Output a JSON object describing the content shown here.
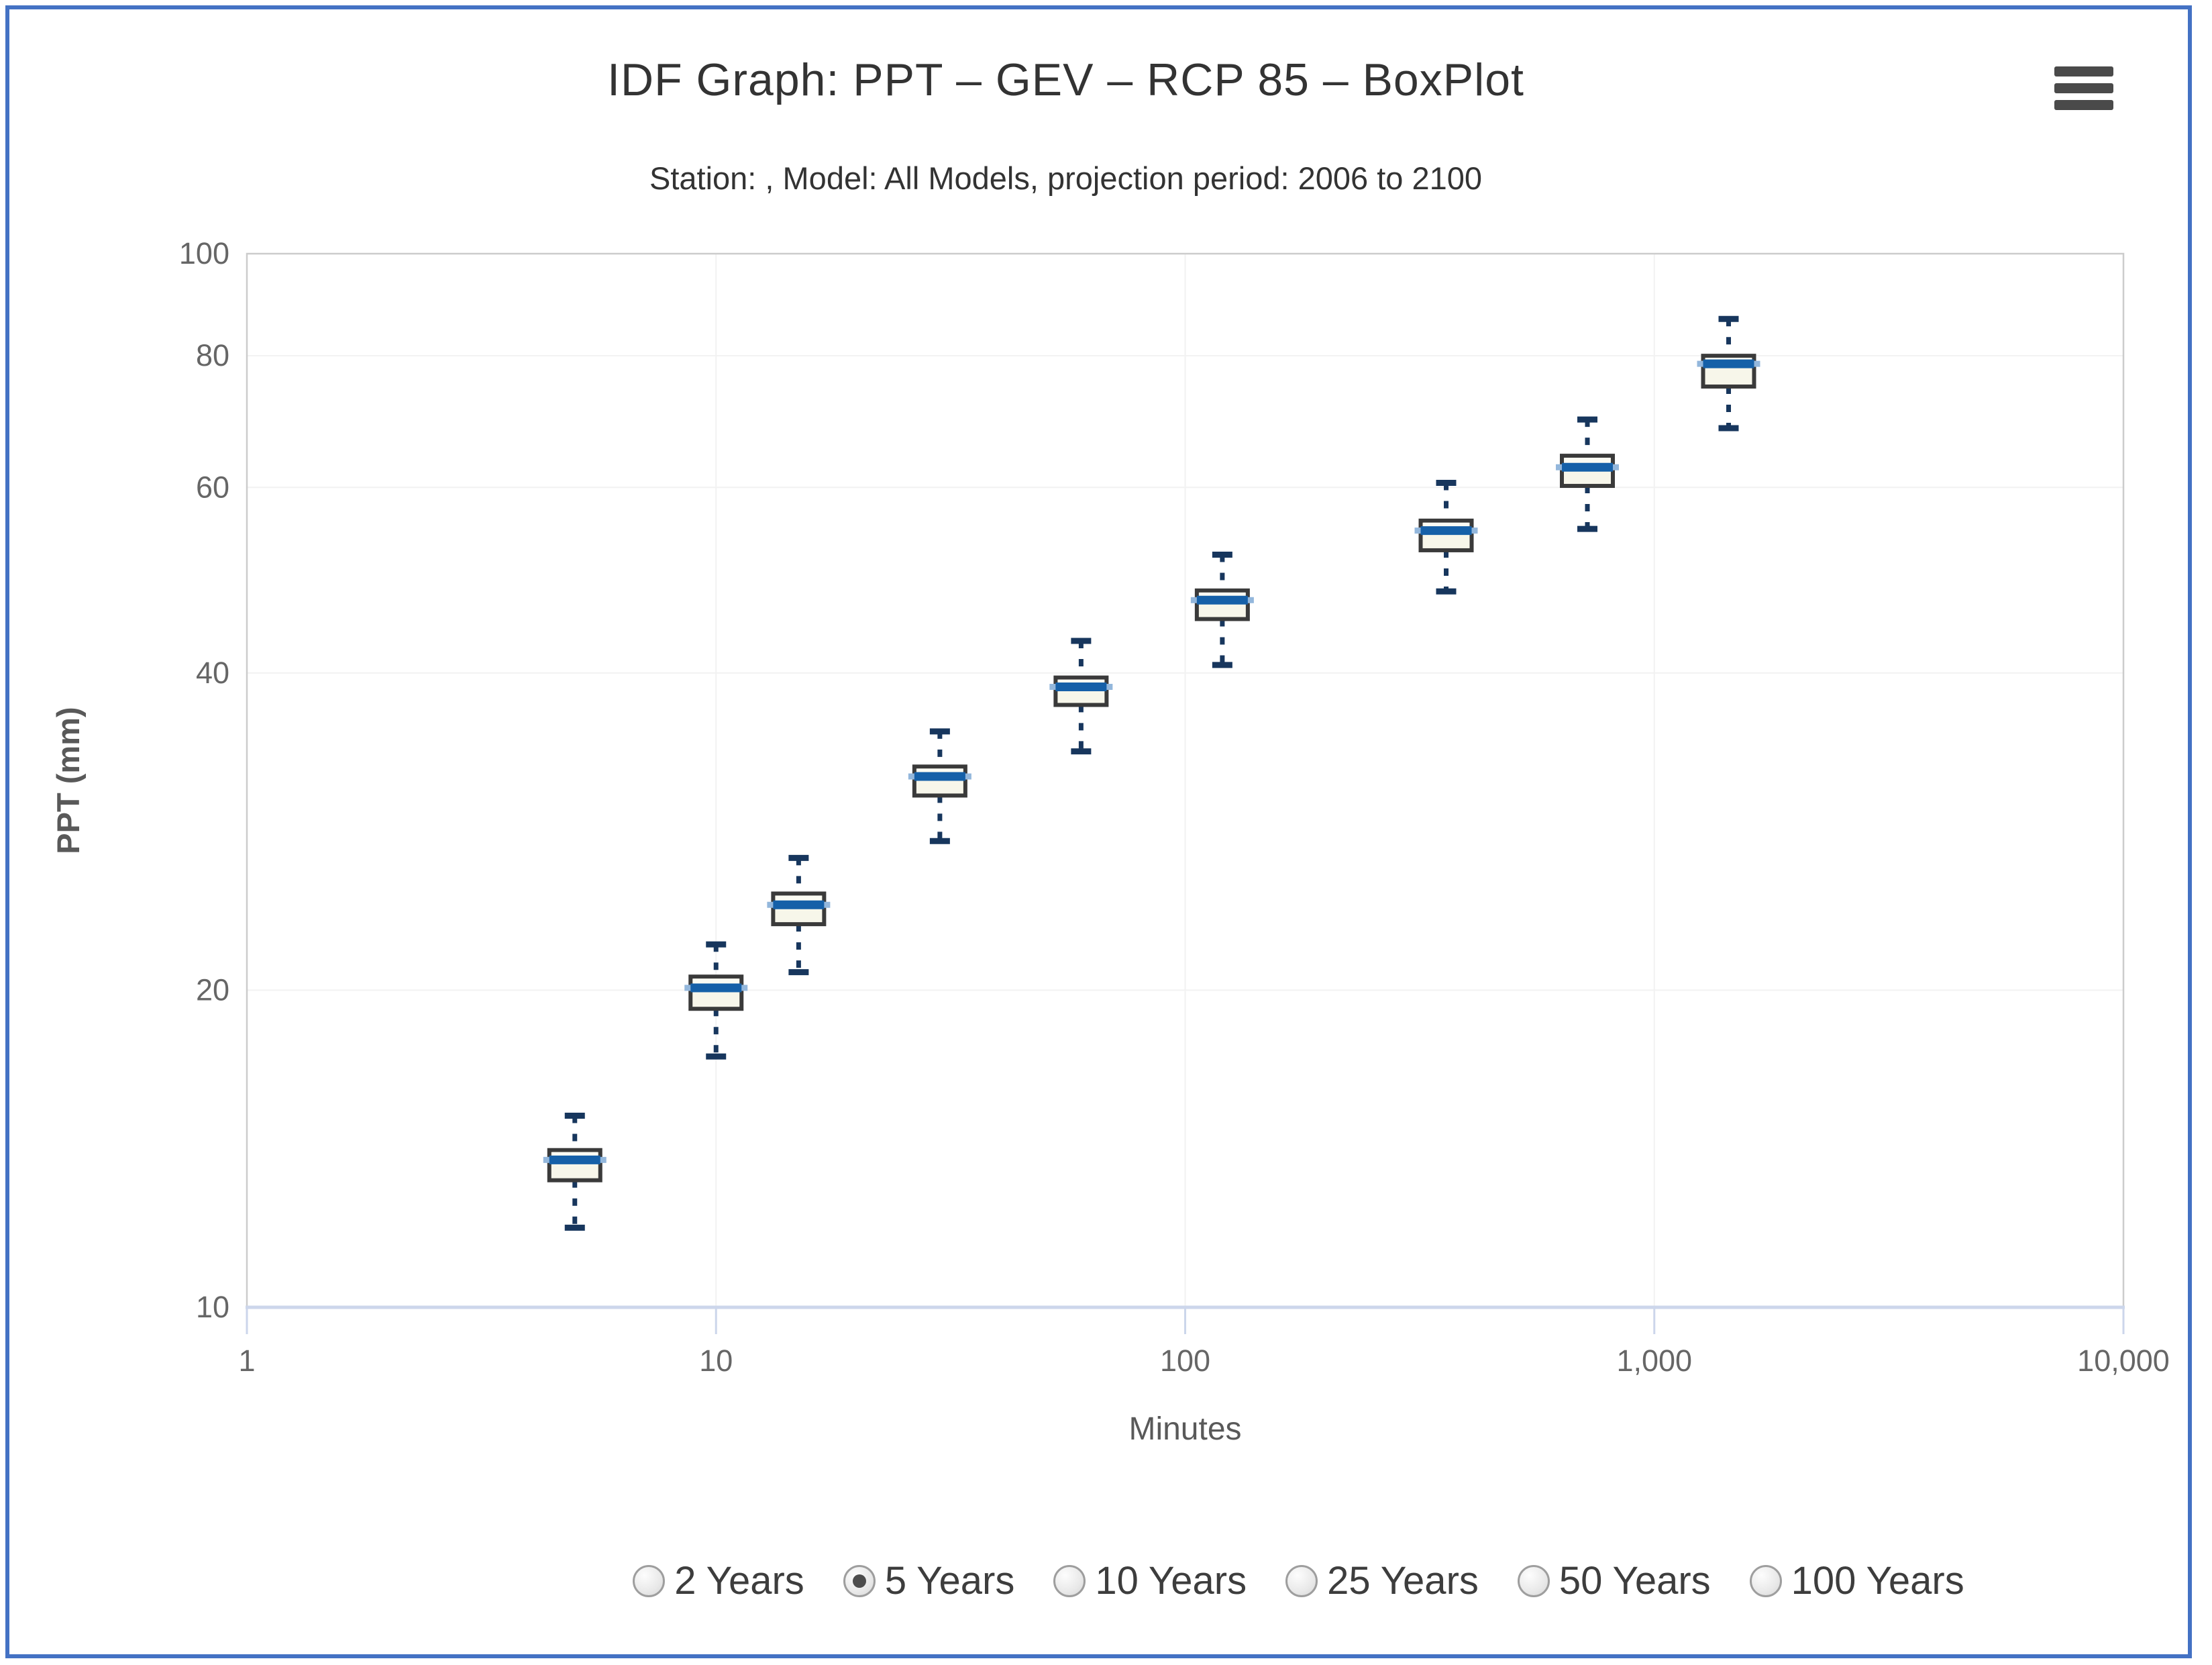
{
  "header": {
    "menu_icon": "hamburger-icon"
  },
  "chart_data": {
    "type": "boxplot",
    "title": "IDF Graph: PPT – GEV – RCP 85 – BoxPlot",
    "subtitle": "Station: , Model: All Models, projection period: 2006 to 2100",
    "xlabel": "Minutes",
    "ylabel": "PPT (mm)",
    "legend": "none",
    "grid": "on",
    "x_axis": {
      "scale": "log",
      "min": 1,
      "max": 10000,
      "tick_values": [
        1,
        10,
        100,
        1000,
        10000
      ],
      "tick_labels": [
        "1",
        "10",
        "100",
        "1,000",
        "10,000"
      ]
    },
    "y_axis": {
      "scale": "log",
      "min": 10,
      "max": 100,
      "tick_values": [
        10,
        20,
        40,
        60,
        80,
        100
      ],
      "tick_labels": [
        "10",
        "20",
        "40",
        "60",
        "80",
        "100"
      ]
    },
    "series": [
      {
        "points": [
          {
            "x": 5,
            "low": 11.9,
            "q1": 13.2,
            "median": 13.8,
            "q3": 14.1,
            "high": 15.2
          },
          {
            "x": 10,
            "low": 17.3,
            "q1": 19.2,
            "median": 20.1,
            "q3": 20.6,
            "high": 22.1
          },
          {
            "x": 15,
            "low": 20.8,
            "q1": 23.1,
            "median": 24.1,
            "q3": 24.7,
            "high": 26.7
          },
          {
            "x": 30,
            "low": 27.7,
            "q1": 30.6,
            "median": 31.9,
            "q3": 32.6,
            "high": 35.2
          },
          {
            "x": 60,
            "low": 33.7,
            "q1": 37.3,
            "median": 38.8,
            "q3": 39.6,
            "high": 42.9
          },
          {
            "x": 120,
            "low": 40.7,
            "q1": 45.0,
            "median": 46.9,
            "q3": 47.9,
            "high": 51.8
          },
          {
            "x": 360,
            "low": 47.8,
            "q1": 52.3,
            "median": 54.6,
            "q3": 55.8,
            "high": 60.6
          },
          {
            "x": 720,
            "low": 54.8,
            "q1": 60.2,
            "median": 62.7,
            "q3": 64.3,
            "high": 69.6
          },
          {
            "x": 1440,
            "low": 68.3,
            "q1": 74.8,
            "median": 78.6,
            "q3": 80.0,
            "high": 86.7
          }
        ]
      }
    ]
  },
  "colors": {
    "frame_border": "#4472c4",
    "title": "#333333",
    "subtitle": "#333333",
    "axis_label": "#666666",
    "axis_title": "#595959",
    "grid": "#f2f2f2",
    "plot_border": "#cccccc",
    "axis_line": "#ccd6eb",
    "box_fill": "#f7f6ea",
    "box_highlight": "#fbfbf3",
    "box_border": "#3a3a3a",
    "median": "#1560a8",
    "median_glow": "#93b7dc",
    "whisker": "#17365d",
    "menu_icon": "#4a4a4a",
    "radio_label": "#3d3d3d"
  },
  "controls": {
    "return_periods": [
      {
        "label": "2 Years",
        "selected": false
      },
      {
        "label": "5 Years",
        "selected": true
      },
      {
        "label": "10 Years",
        "selected": false
      },
      {
        "label": "25 Years",
        "selected": false
      },
      {
        "label": "50 Years",
        "selected": false
      },
      {
        "label": "100 Years",
        "selected": false
      }
    ]
  }
}
